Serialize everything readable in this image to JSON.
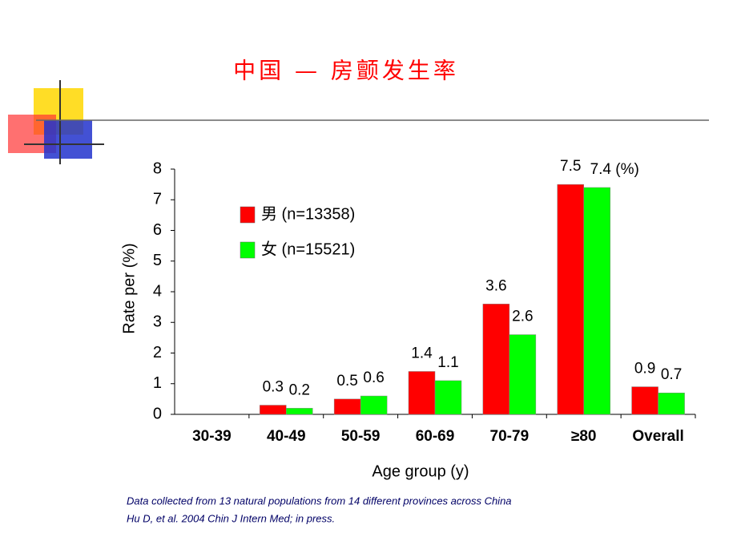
{
  "chart_data": {
    "type": "bar",
    "title": "中国 — 房颤发生率",
    "x_label": "Age group (y)",
    "y_label": "Rate per (%)",
    "categories": [
      "30-39",
      "40-49",
      "50-59",
      "60-69",
      "70-79",
      "≥80",
      "Overall"
    ],
    "series": [
      {
        "name": "男 (n=13358)",
        "color": "#ff0000",
        "values": [
          0,
          0.3,
          0.5,
          1.4,
          3.6,
          7.5,
          0.9
        ],
        "value_labels": [
          null,
          "0.3",
          "0.5",
          "1.4",
          "3.6",
          "7.5",
          "0.9"
        ]
      },
      {
        "name": "女 (n=15521)",
        "color": "#00ff00",
        "values": [
          0,
          0.2,
          0.6,
          1.1,
          2.6,
          7.4,
          0.7
        ],
        "value_labels": [
          null,
          "0.2",
          "0.6",
          "1.1",
          "2.6",
          "7.4 (%)",
          "0.7"
        ]
      }
    ],
    "ylim": [
      0,
      8
    ],
    "yticks": [
      0,
      1,
      2,
      3,
      4,
      5,
      6,
      7,
      8
    ],
    "grid": false,
    "notes": [
      "Data collected from 13 natural populations from 14 different provinces across China",
      "Hu D, et al. 2004 Chin J Intern Med; in press."
    ]
  }
}
